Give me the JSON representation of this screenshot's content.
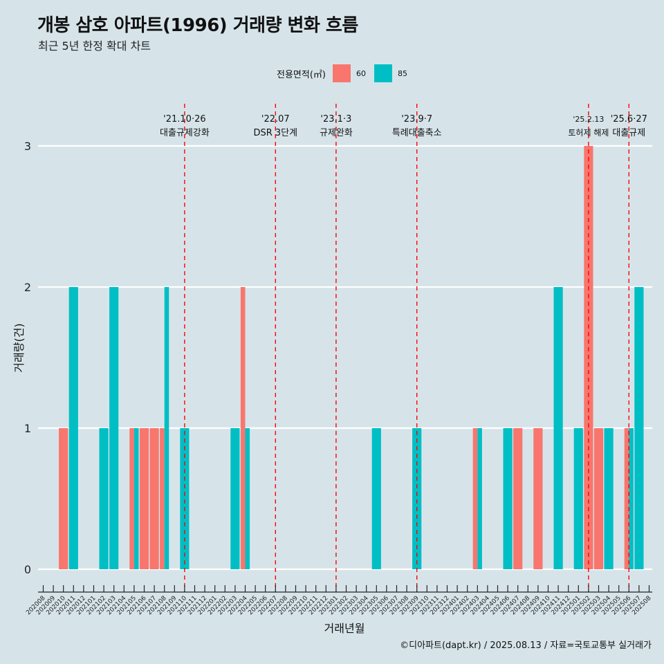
{
  "title": "개봉 삼호 아파트(1996) 거래량 변화 흐름",
  "subtitle": "최근 5년 한정 확대 차트",
  "caption": "©디아파트(dapt.kr) / 2025.08.13 / 자료=국토교통부 실거래가",
  "legend": {
    "title": "전용면적(㎡)",
    "items": [
      {
        "label": "60",
        "color": "#f8766d"
      },
      {
        "label": "85",
        "color": "#00bfc4"
      }
    ]
  },
  "chart_data": {
    "type": "bar",
    "xlabel": "거래년월",
    "ylabel": "거래량(건)",
    "ylim": [
      0,
      3
    ],
    "yticks": [
      0,
      1,
      2,
      3
    ],
    "grid": "horizontal",
    "legend_position": "top",
    "categories": [
      "202008",
      "202009",
      "202010",
      "202011",
      "202012",
      "202101",
      "202102",
      "202103",
      "202104",
      "202105",
      "202106",
      "202107",
      "202108",
      "202109",
      "202110",
      "202111",
      "202112",
      "202201",
      "202202",
      "202203",
      "202204",
      "202205",
      "202206",
      "202207",
      "202208",
      "202209",
      "202210",
      "202211",
      "202212",
      "202301",
      "202302",
      "202303",
      "202304",
      "202305",
      "202306",
      "202307",
      "202308",
      "202309",
      "202310",
      "202311",
      "202312",
      "202401",
      "202402",
      "202403",
      "202404",
      "202405",
      "202406",
      "202407",
      "202408",
      "202409",
      "202410",
      "202411",
      "202412",
      "202501",
      "202502",
      "202503",
      "202504",
      "202505",
      "202506",
      "202507",
      "202508"
    ],
    "series": [
      {
        "name": "60",
        "color": "#f8766d",
        "values": [
          0,
          0,
          1,
          0,
          0,
          0,
          0,
          0,
          0,
          1,
          1,
          1,
          1,
          0,
          0,
          0,
          0,
          0,
          0,
          0,
          2,
          0,
          0,
          0,
          0,
          0,
          0,
          0,
          0,
          0,
          0,
          0,
          0,
          0,
          0,
          0,
          0,
          0,
          0,
          0,
          0,
          0,
          0,
          1,
          0,
          0,
          0,
          1,
          0,
          1,
          0,
          0,
          0,
          0,
          3,
          1,
          0,
          0,
          1,
          0,
          0
        ]
      },
      {
        "name": "85",
        "color": "#00bfc4",
        "values": [
          0,
          0,
          0,
          2,
          0,
          0,
          1,
          2,
          0,
          1,
          0,
          0,
          2,
          0,
          1,
          0,
          0,
          0,
          0,
          1,
          1,
          0,
          0,
          0,
          0,
          0,
          0,
          0,
          0,
          0,
          0,
          0,
          0,
          1,
          0,
          0,
          0,
          1,
          0,
          0,
          0,
          0,
          0,
          1,
          0,
          0,
          1,
          0,
          0,
          0,
          0,
          2,
          0,
          1,
          0,
          0,
          1,
          0,
          1,
          2,
          0
        ]
      }
    ],
    "annotations": [
      {
        "month": "202110",
        "date": "'21.10·26",
        "label": "대출규제강화"
      },
      {
        "month": "202207",
        "date": "'22.07",
        "label": "DSR 3단계"
      },
      {
        "month": "202301",
        "date": "'23.1·3",
        "label": "규제완화"
      },
      {
        "month": "202309",
        "date": "'23.9·7",
        "label": "특례대출축소"
      },
      {
        "month": "202502",
        "date": "'25.2.13",
        "label": "토허제 해제"
      },
      {
        "month": "202506",
        "date": "'25.6·27",
        "label": "대출규제"
      }
    ]
  }
}
